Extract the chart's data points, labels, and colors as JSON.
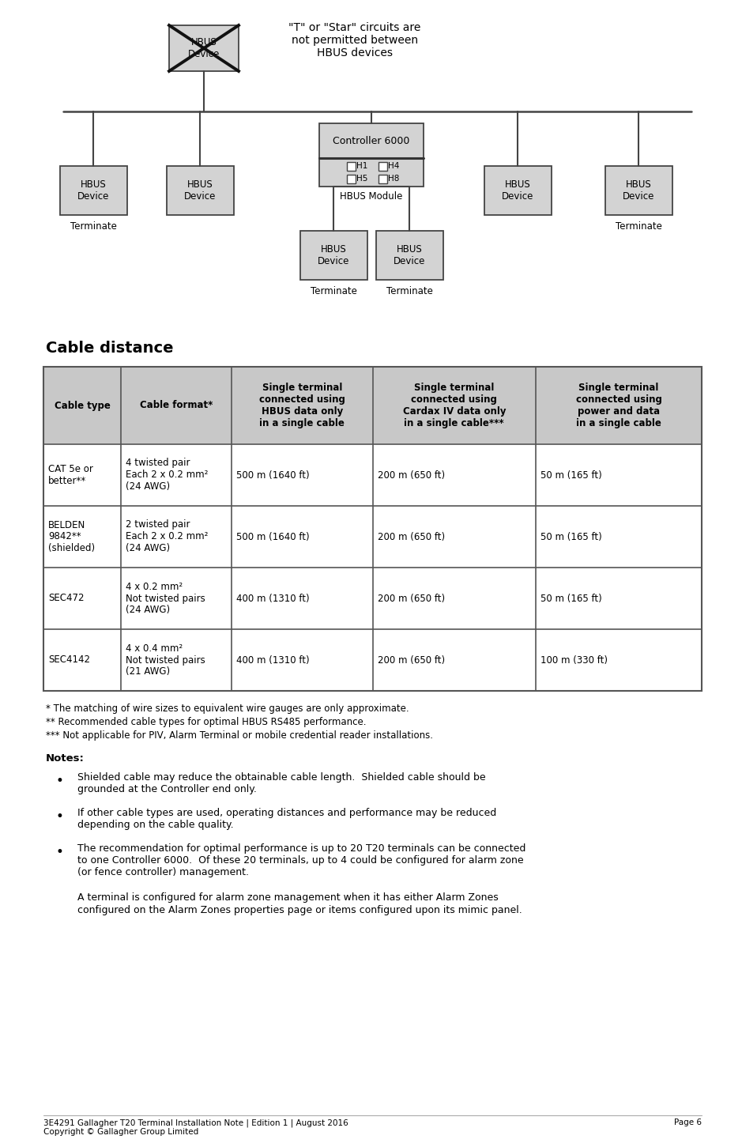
{
  "page_bg": "#ffffff",
  "diagram": {
    "box_fill": "#d3d3d3",
    "box_edge": "#444444",
    "note_text": "\"T\" or \"Star\" circuits are\nnot permitted between\nHBUS devices"
  },
  "section_title": "Cable distance",
  "table": {
    "header_fill": "#c8c8c8",
    "border_color": "#555555",
    "col_headers": [
      "Cable type",
      "Cable format*",
      "Single terminal\nconnected using\nHBUS data only\nin a single cable",
      "Single terminal\nconnected using\nCardax IV data only\nin a single cable***",
      "Single terminal\nconnected using\npower and data\nin a single cable"
    ],
    "rows": [
      [
        "CAT 5e or\nbetter**",
        "4 twisted pair\nEach 2 x 0.2 mm²\n(24 AWG)",
        "500 m (1640 ft)",
        "200 m (650 ft)",
        "50 m (165 ft)"
      ],
      [
        "BELDEN\n9842**\n(shielded)",
        "2 twisted pair\nEach 2 x 0.2 mm²\n(24 AWG)",
        "500 m (1640 ft)",
        "200 m (650 ft)",
        "50 m (165 ft)"
      ],
      [
        "SEC472",
        "4 x 0.2 mm²\nNot twisted pairs\n(24 AWG)",
        "400 m (1310 ft)",
        "200 m (650 ft)",
        "50 m (165 ft)"
      ],
      [
        "SEC4142",
        "4 x 0.4 mm²\nNot twisted pairs\n(21 AWG)",
        "400 m (1310 ft)",
        "200 m (650 ft)",
        "100 m (330 ft)"
      ]
    ]
  },
  "footnotes": [
    "* The matching of wire sizes to equivalent wire gauges are only approximate.",
    "** Recommended cable types for optimal HBUS RS485 performance.",
    "*** Not applicable for PIV, Alarm Terminal or mobile credential reader installations."
  ],
  "notes_title": "Notes:",
  "notes": [
    "Shielded cable may reduce the obtainable cable length.  Shielded cable should be\ngrounded at the Controller end only.",
    "If other cable types are used, operating distances and performance may be reduced\ndepending on the cable quality.",
    "The recommendation for optimal performance is up to 20 T20 terminals can be connected\nto one Controller 6000.  Of these 20 terminals, up to 4 could be configured for alarm zone\n(or fence controller) management."
  ],
  "sub_note": "A terminal is configured for alarm zone management when it has either Alarm Zones\nconfigured on the ",
  "sub_note_bold": "Alarm Zones",
  "sub_note_end": " properties page or items configured upon its mimic panel.",
  "footer_left": "3E4291 Gallagher T20 Terminal Installation Note | Edition 1 | August 2016\nCopyright © Gallagher Group Limited",
  "footer_right": "Page 6"
}
